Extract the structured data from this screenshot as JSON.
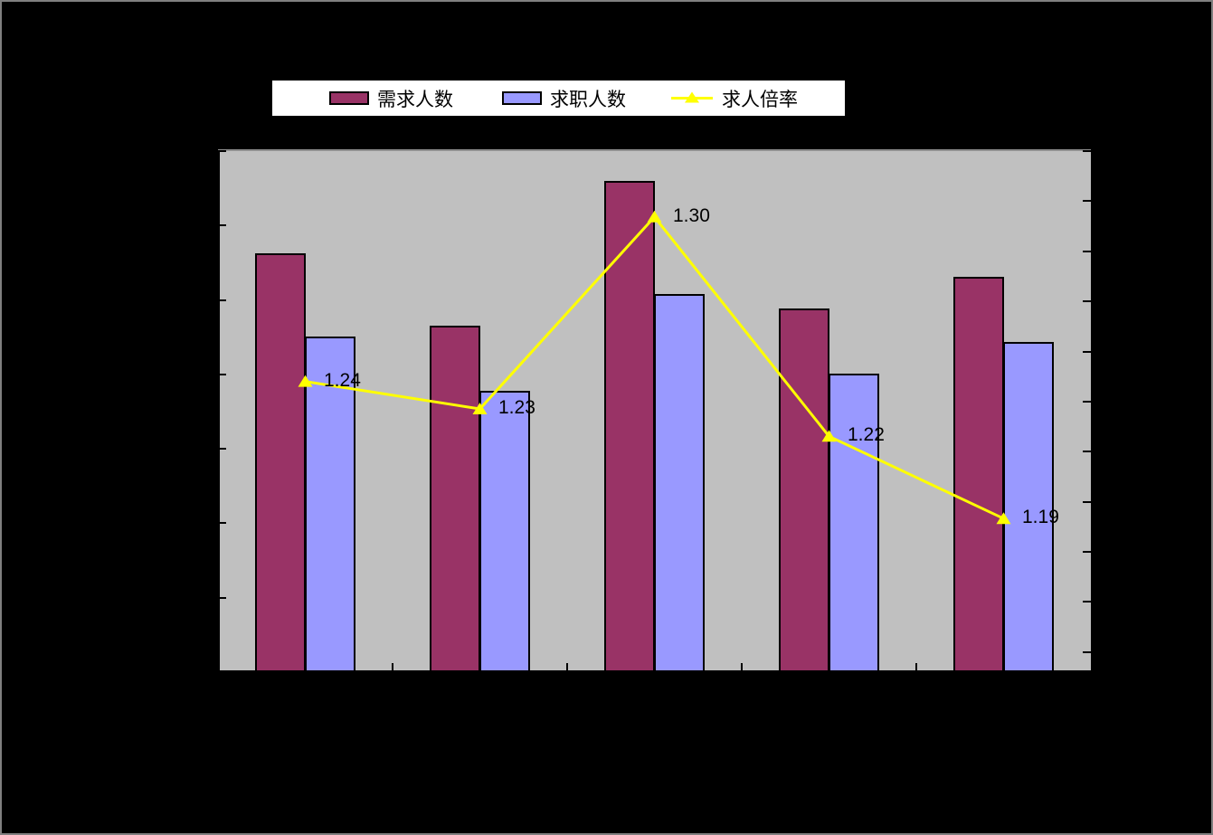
{
  "canvas": {
    "background": "#000000",
    "border_color": "#7f7f7f"
  },
  "legend": {
    "background": "#FFFFFF",
    "border_color": "#000000",
    "items": [
      {
        "label": "需求人数",
        "swatch": "bar",
        "color": "#993366"
      },
      {
        "label": "求职人数",
        "swatch": "bar",
        "color": "#9999FF"
      },
      {
        "label": "求人倍率",
        "swatch": "line-with-triangle-marker",
        "color": "#FFFF00"
      }
    ]
  },
  "chart_data": {
    "type": "bar",
    "subtype": "combo-bar-line-dual-axis",
    "categories": [
      "",
      "",
      "",
      "",
      ""
    ],
    "x_tick_labels_visible": false,
    "y_tick_labels_visible": false,
    "y2_tick_labels_visible": false,
    "series": [
      {
        "name": "需求人数",
        "type": "bar",
        "axis": "primary",
        "color": "#993366",
        "values": [
          5.63,
          4.65,
          6.6,
          4.88,
          5.31
        ]
      },
      {
        "name": "求职人数",
        "type": "bar",
        "axis": "primary",
        "color": "#9999FF",
        "values": [
          4.51,
          3.78,
          5.08,
          4.01,
          4.43
        ]
      },
      {
        "name": "求人倍率",
        "type": "line",
        "axis": "secondary",
        "color": "#FFFF00",
        "marker": "triangle",
        "values": [
          1.24,
          1.23,
          1.3,
          1.22,
          1.19
        ],
        "data_labels": [
          "1.24",
          "1.23",
          "1.30",
          "1.22",
          "1.19"
        ]
      }
    ],
    "ylim": [
      0,
      7
    ],
    "y_major_divisions": 7,
    "y2lim": [
      1.134,
      1.324
    ],
    "y2_major_divisions": 10.4,
    "legend_position": "top",
    "grid": false,
    "plot_background": "#C0C0C0",
    "axis_color": "#000000",
    "data_label_color": "#000000"
  }
}
